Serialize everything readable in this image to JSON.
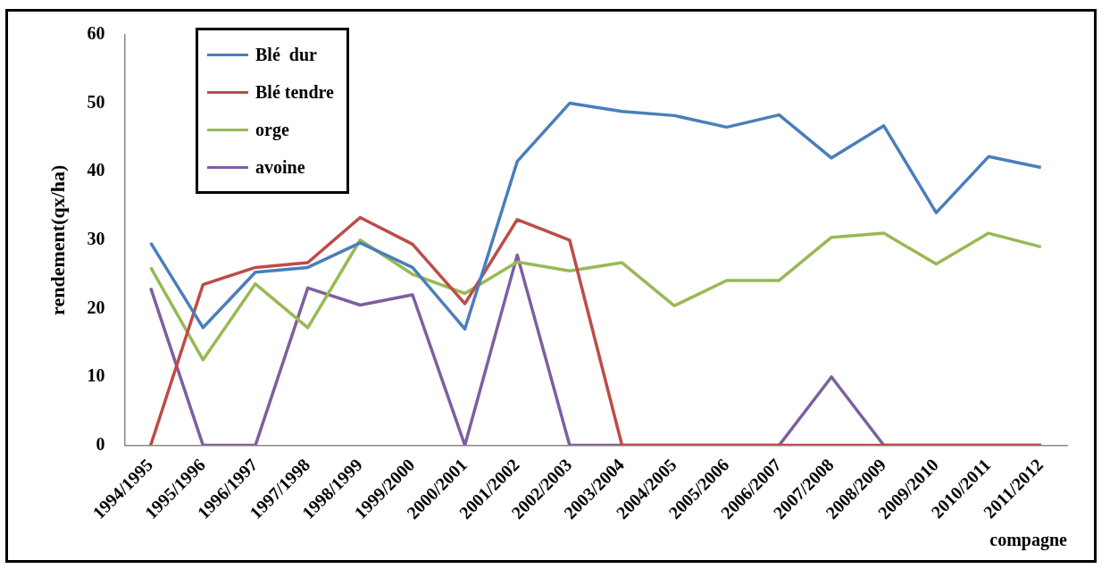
{
  "chart_data": {
    "type": "line",
    "xlabel": "compagne",
    "ylabel": "rendement(qx/ha)",
    "categories": [
      "1994/1995",
      "1995/1996",
      "1996/1997",
      "1997/1998",
      "1998/1999",
      "1999/2000",
      "2000/2001",
      "2001/2002",
      "2002/2003",
      "2003/2004",
      "2004/2005",
      "2005/2006",
      "2006/2007",
      "2007/2008",
      "2008/2009",
      "2009/2010",
      "2010/2011",
      "2011/2012"
    ],
    "series": [
      {
        "name": "Blé  dur",
        "color": "#4a7ebb",
        "values": [
          29.6,
          17.2,
          25.3,
          26,
          29.6,
          26,
          17,
          41.5,
          50,
          48.8,
          48.2,
          46.5,
          48.3,
          42,
          46.7,
          34,
          42.2,
          40.6
        ]
      },
      {
        "name": "Blé tendre",
        "color": "#be4b48",
        "values": [
          0,
          23.5,
          26,
          26.7,
          33.3,
          29.4,
          20.7,
          33,
          30,
          0,
          0,
          0,
          0,
          0,
          0,
          0,
          0,
          0
        ]
      },
      {
        "name": "orge",
        "color": "#98b954",
        "values": [
          26,
          12.5,
          23.6,
          17.2,
          30,
          25,
          22.2,
          26.8,
          25.5,
          26.7,
          20.4,
          24.1,
          24.1,
          30.4,
          31,
          26.5,
          31,
          29
        ]
      },
      {
        "name": "avoine",
        "color": "#7d5fa0",
        "values": [
          23,
          0,
          0,
          23,
          20.5,
          22,
          0,
          27.8,
          0,
          0,
          0,
          0,
          0,
          10,
          0,
          0,
          0,
          0
        ]
      }
    ],
    "ylim": [
      0,
      60
    ],
    "yticks": [
      0,
      10,
      20,
      30,
      40,
      50,
      60
    ],
    "grid": false,
    "legend": "top left",
    "marker": "none",
    "line_style": "solid"
  }
}
